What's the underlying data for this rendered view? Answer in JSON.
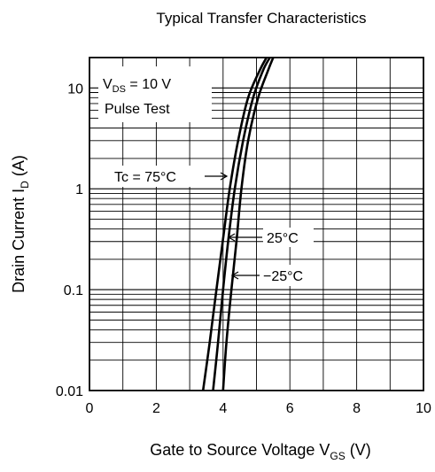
{
  "chart_data": {
    "type": "line",
    "title": "Typical Transfer Characteristics",
    "xlabel": {
      "text": "Gate to Source Voltage",
      "symbol": "V",
      "symbol_sub": "GS",
      "unit": "(V)"
    },
    "ylabel": {
      "text": "Drain Current",
      "symbol": "I",
      "symbol_sub": "D",
      "unit": "(A)"
    },
    "xlim": [
      0,
      10
    ],
    "ylim": [
      0.01,
      20
    ],
    "yscale": "log",
    "x_ticks": [
      0,
      2,
      4,
      6,
      8,
      10
    ],
    "x_tick_labels": [
      "0",
      "2",
      "4",
      "6",
      "8",
      "10"
    ],
    "y_ticks": [
      0.01,
      0.1,
      1,
      10
    ],
    "y_tick_labels": [
      "0.01",
      "0.1",
      "1",
      "10"
    ],
    "grid": true,
    "conditions": [
      {
        "pre": "V",
        "sub": "DS",
        "post": " = 10 V"
      },
      {
        "pre": "Pulse Test",
        "sub": "",
        "post": ""
      }
    ],
    "series": [
      {
        "name": "Tc = 75°C",
        "points": [
          [
            3.4,
            0.01
          ],
          [
            3.6,
            0.03
          ],
          [
            3.8,
            0.1
          ],
          [
            4.0,
            0.32
          ],
          [
            4.2,
            1.0
          ],
          [
            4.45,
            3.0
          ],
          [
            4.75,
            8.0
          ],
          [
            5.1,
            15.0
          ],
          [
            5.3,
            20.0
          ]
        ]
      },
      {
        "name": "25°C",
        "points": [
          [
            3.7,
            0.01
          ],
          [
            3.85,
            0.03
          ],
          [
            4.0,
            0.1
          ],
          [
            4.15,
            0.3
          ],
          [
            4.35,
            1.0
          ],
          [
            4.6,
            3.0
          ],
          [
            4.9,
            8.0
          ],
          [
            5.2,
            15.0
          ],
          [
            5.4,
            20.0
          ]
        ]
      },
      {
        "name": "−25°C",
        "points": [
          [
            4.0,
            0.01
          ],
          [
            4.1,
            0.03
          ],
          [
            4.25,
            0.1
          ],
          [
            4.4,
            0.3
          ],
          [
            4.55,
            1.0
          ],
          [
            4.75,
            3.0
          ],
          [
            5.05,
            8.0
          ],
          [
            5.35,
            15.0
          ],
          [
            5.5,
            20.0
          ]
        ]
      }
    ]
  }
}
